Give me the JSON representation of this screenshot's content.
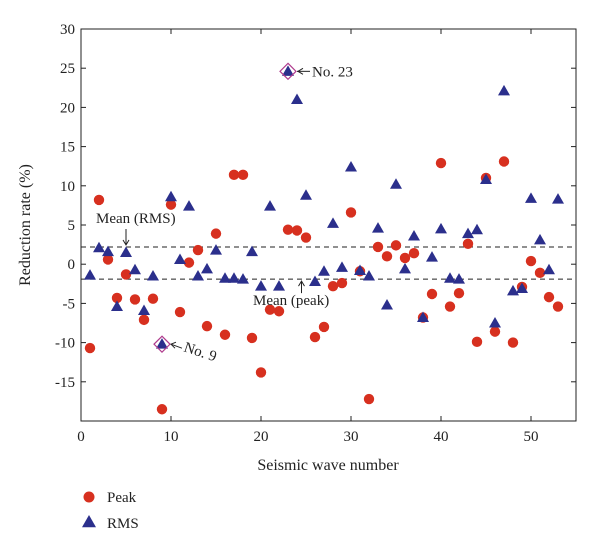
{
  "chart_data": {
    "type": "scatter",
    "xlabel": "Seismic wave number",
    "ylabel": "Reduction rate (%)",
    "xlim": [
      0,
      55
    ],
    "ylim": [
      -20,
      30
    ],
    "xticks": [
      0,
      10,
      20,
      30,
      40,
      50
    ],
    "yticks": [
      -15,
      -10,
      -5,
      0,
      5,
      10,
      15,
      20,
      25,
      30
    ],
    "grid": false,
    "legend_position": "bottom-left",
    "series": [
      {
        "name": "Peak",
        "marker": "circle",
        "color": "#d7301f",
        "points": [
          [
            1,
            -10.7
          ],
          [
            2,
            8.2
          ],
          [
            3,
            0.6
          ],
          [
            4,
            -4.3
          ],
          [
            5,
            -1.3
          ],
          [
            6,
            -4.5
          ],
          [
            7,
            -7.1
          ],
          [
            8,
            -4.4
          ],
          [
            9,
            -18.5
          ],
          [
            10,
            7.6
          ],
          [
            11,
            -6.1
          ],
          [
            12,
            0.2
          ],
          [
            13,
            1.8
          ],
          [
            14,
            -7.9
          ],
          [
            15,
            3.9
          ],
          [
            16,
            -9.0
          ],
          [
            17,
            11.4
          ],
          [
            18,
            11.4
          ],
          [
            19,
            -9.4
          ],
          [
            20,
            -13.8
          ],
          [
            21,
            -5.8
          ],
          [
            22,
            -6.0
          ],
          [
            23,
            4.4
          ],
          [
            24,
            4.3
          ],
          [
            25,
            3.4
          ],
          [
            26,
            -9.3
          ],
          [
            27,
            -8.0
          ],
          [
            28,
            -2.8
          ],
          [
            29,
            -2.4
          ],
          [
            30,
            6.6
          ],
          [
            31,
            -0.9
          ],
          [
            32,
            -17.2
          ],
          [
            33,
            2.2
          ],
          [
            34,
            1.0
          ],
          [
            35,
            2.4
          ],
          [
            36,
            0.8
          ],
          [
            37,
            1.4
          ],
          [
            38,
            -6.8
          ],
          [
            39,
            -3.8
          ],
          [
            40,
            12.9
          ],
          [
            41,
            -5.4
          ],
          [
            42,
            -3.7
          ],
          [
            43,
            2.6
          ],
          [
            44,
            -9.9
          ],
          [
            45,
            11.0
          ],
          [
            46,
            -8.6
          ],
          [
            47,
            13.1
          ],
          [
            48,
            -10.0
          ],
          [
            49,
            -2.9
          ],
          [
            50,
            0.4
          ],
          [
            51,
            -1.1
          ],
          [
            52,
            -4.2
          ],
          [
            53,
            -5.4
          ]
        ]
      },
      {
        "name": "RMS",
        "marker": "triangle",
        "color": "#2b2f8c",
        "points": [
          [
            1,
            -1.4
          ],
          [
            2,
            2.1
          ],
          [
            3,
            1.6
          ],
          [
            4,
            -5.4
          ],
          [
            5,
            1.5
          ],
          [
            6,
            -0.7
          ],
          [
            7,
            -5.9
          ],
          [
            8,
            -1.5
          ],
          [
            9,
            -10.2
          ],
          [
            10,
            8.6
          ],
          [
            11,
            0.6
          ],
          [
            12,
            7.4
          ],
          [
            13,
            -1.5
          ],
          [
            14,
            -0.6
          ],
          [
            15,
            1.8
          ],
          [
            16,
            -1.8
          ],
          [
            17,
            -1.8
          ],
          [
            18,
            -1.9
          ],
          [
            19,
            1.6
          ],
          [
            20,
            -2.8
          ],
          [
            21,
            7.4
          ],
          [
            22,
            -2.8
          ],
          [
            23,
            24.6
          ],
          [
            24,
            21.0
          ],
          [
            25,
            8.8
          ],
          [
            26,
            -2.2
          ],
          [
            27,
            -0.9
          ],
          [
            28,
            5.2
          ],
          [
            29,
            -0.4
          ],
          [
            30,
            12.4
          ],
          [
            31,
            -0.8
          ],
          [
            32,
            -1.5
          ],
          [
            33,
            4.6
          ],
          [
            34,
            -5.2
          ],
          [
            35,
            10.2
          ],
          [
            36,
            -0.6
          ],
          [
            37,
            3.6
          ],
          [
            38,
            -6.8
          ],
          [
            39,
            0.9
          ],
          [
            40,
            4.5
          ],
          [
            41,
            -1.8
          ],
          [
            42,
            -1.9
          ],
          [
            43,
            3.9
          ],
          [
            44,
            4.4
          ],
          [
            45,
            10.8
          ],
          [
            46,
            -7.5
          ],
          [
            47,
            22.1
          ],
          [
            48,
            -3.4
          ],
          [
            49,
            -3.1
          ],
          [
            50,
            8.4
          ],
          [
            51,
            3.1
          ],
          [
            52,
            -0.7
          ],
          [
            53,
            8.3
          ]
        ]
      }
    ],
    "reference_lines": [
      {
        "label": "Mean (RMS)",
        "y": 2.2
      },
      {
        "label": "Mean (peak)",
        "y": -1.9
      }
    ],
    "annotations": [
      {
        "text": "No. 23",
        "x": 23,
        "y": 24.6
      },
      {
        "text": "No. 9",
        "x": 9,
        "y": -10.2
      }
    ]
  }
}
